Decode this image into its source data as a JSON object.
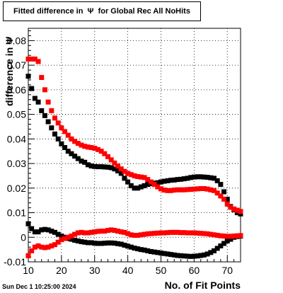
{
  "chart_data": {
    "type": "scatter",
    "title": "Fitted difference in  Ψ  for Global Rec All NoHits",
    "xlabel": "No. of Fit Points",
    "ylabel": "difference in Ψ",
    "timestamp": "Sun Dec  1 10:25:00 2024",
    "xlim": [
      10,
      74
    ],
    "ylim": [
      -0.01,
      0.085
    ],
    "xticks": [
      10,
      20,
      30,
      40,
      50,
      60,
      70
    ],
    "xtick_labels": [
      "10",
      "20",
      "30",
      "40",
      "50",
      "60",
      "70"
    ],
    "yticks": [
      -0.01,
      0,
      0.01,
      0.02,
      0.03,
      0.04,
      0.05,
      0.06,
      0.07,
      0.08
    ],
    "ytick_labels": [
      "-0.01",
      "0",
      "0.01",
      "0.02",
      "0.03",
      "0.04",
      "0.05",
      "0.06",
      "0.07",
      "0.08"
    ],
    "grid": true,
    "x": [
      10,
      11,
      12,
      13,
      14,
      15,
      16,
      17,
      18,
      19,
      20,
      21,
      22,
      23,
      24,
      25,
      26,
      27,
      28,
      29,
      30,
      31,
      32,
      33,
      34,
      35,
      36,
      37,
      38,
      39,
      40,
      41,
      42,
      43,
      44,
      45,
      46,
      47,
      48,
      49,
      50,
      51,
      52,
      53,
      54,
      55,
      56,
      57,
      58,
      59,
      60,
      61,
      62,
      63,
      64,
      65,
      66,
      67,
      68,
      69,
      70,
      71,
      72,
      73,
      74
    ],
    "series": [
      {
        "color": "#000000",
        "values": [
          0.0655,
          0.0605,
          0.0565,
          0.055,
          0.0515,
          0.0495,
          0.047,
          0.0445,
          0.042,
          0.04,
          0.038,
          0.0365,
          0.035,
          0.034,
          0.033,
          0.032,
          0.031,
          0.0305,
          0.0295,
          0.029,
          0.0288,
          0.0287,
          0.0287,
          0.0286,
          0.0285,
          0.0283,
          0.0278,
          0.027,
          0.026,
          0.024,
          0.0225,
          0.021,
          0.02,
          0.02,
          0.0205,
          0.021,
          0.0215,
          0.0218,
          0.022,
          0.0222,
          0.0225,
          0.0228,
          0.023,
          0.0232,
          0.0233,
          0.0235,
          0.0236,
          0.0238,
          0.024,
          0.0243,
          0.0245,
          0.0246,
          0.0246,
          0.0245,
          0.0244,
          0.0242,
          0.024,
          0.023,
          0.0215,
          0.0185,
          0.0155,
          0.0125,
          0.0112,
          0.01,
          0.0095
        ]
      },
      {
        "color": "#ff0000",
        "values": [
          0.0725,
          0.0725,
          0.0725,
          0.0715,
          0.065,
          0.06,
          0.055,
          0.0515,
          0.0485,
          0.0465,
          0.0445,
          0.043,
          0.0415,
          0.04,
          0.039,
          0.0382,
          0.0375,
          0.037,
          0.0367,
          0.0365,
          0.0362,
          0.0357,
          0.035,
          0.034,
          0.0328,
          0.0315,
          0.0302,
          0.029,
          0.0278,
          0.0268,
          0.026,
          0.0255,
          0.025,
          0.0247,
          0.0245,
          0.0243,
          0.0235,
          0.0225,
          0.0215,
          0.0205,
          0.0197,
          0.0192,
          0.019,
          0.019,
          0.0192,
          0.0193,
          0.0193,
          0.0193,
          0.0194,
          0.0195,
          0.0196,
          0.0197,
          0.0198,
          0.0198,
          0.0196,
          0.0193,
          0.019,
          0.018,
          0.0168,
          0.0155,
          0.0135,
          0.0122,
          0.0115,
          0.011,
          0.0105
        ]
      },
      {
        "color": "#000000",
        "values": [
          0.0055,
          0.0035,
          0.0022,
          0.0022,
          0.003,
          0.0032,
          0.003,
          0.0025,
          0.002,
          0.0012,
          0.0005,
          0.0,
          -0.0005,
          -0.0008,
          -0.0012,
          -0.0015,
          -0.0018,
          -0.002,
          -0.0022,
          -0.0022,
          -0.0024,
          -0.0025,
          -0.0025,
          -0.0024,
          -0.0023,
          -0.0023,
          -0.0024,
          -0.0026,
          -0.0028,
          -0.0032,
          -0.0036,
          -0.004,
          -0.0044,
          -0.0047,
          -0.005,
          -0.0052,
          -0.0055,
          -0.0058,
          -0.006,
          -0.0062,
          -0.0064,
          -0.0066,
          -0.0068,
          -0.007,
          -0.0072,
          -0.0074,
          -0.0075,
          -0.0076,
          -0.0077,
          -0.0078,
          -0.0077,
          -0.0076,
          -0.0074,
          -0.0072,
          -0.0068,
          -0.0062,
          -0.0055,
          -0.0045,
          -0.0035,
          -0.0025,
          -0.0015,
          -0.0008,
          0.0,
          0.0003,
          0.0005
        ]
      },
      {
        "color": "#ff0000",
        "values": [
          -0.0075,
          -0.0055,
          -0.004,
          -0.0035,
          -0.004,
          -0.0042,
          -0.004,
          -0.0035,
          -0.003,
          -0.002,
          -0.001,
          -0.0005,
          0.0,
          0.0005,
          0.0012,
          0.0018,
          0.002,
          0.0018,
          0.0018,
          0.002,
          0.0022,
          0.0024,
          0.0025,
          0.0025,
          0.0028,
          0.003,
          0.0028,
          0.0025,
          0.0022,
          0.002,
          0.0015,
          0.001,
          0.0008,
          0.0008,
          0.001,
          0.0012,
          0.0014,
          0.0015,
          0.0016,
          0.0017,
          0.0018,
          0.0018,
          0.0019,
          0.002,
          0.002,
          0.002,
          0.0019,
          0.0019,
          0.0018,
          0.0018,
          0.0018,
          0.0017,
          0.0016,
          0.0015,
          0.0014,
          0.0012,
          0.001,
          0.0008,
          0.0006,
          0.0005,
          0.0004,
          0.0004,
          0.0005,
          0.0006,
          0.0007
        ]
      }
    ]
  }
}
